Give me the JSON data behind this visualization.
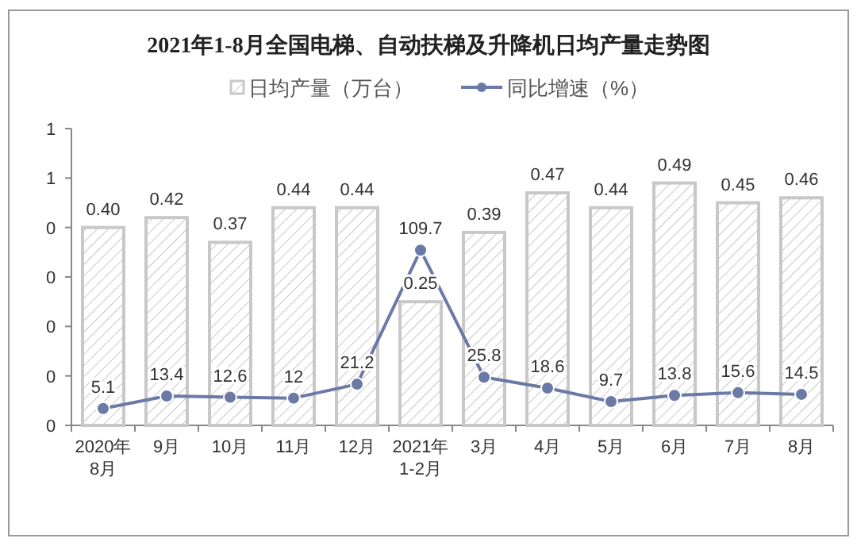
{
  "chart_data": {
    "type": "bar",
    "title": "2021年1-8月全国电梯、自动扶梯及升降机日均产量走势图",
    "categories": [
      "2020年\n8月",
      "9月",
      "10月",
      "11月",
      "12月",
      "2021年\n1-2月",
      "3月",
      "4月",
      "5月",
      "6月",
      "7月",
      "8月"
    ],
    "series": [
      {
        "name": "日均产量（万台）",
        "color": "#c8c8c8",
        "values": [
          0.4,
          0.42,
          0.37,
          0.44,
          0.44,
          0.25,
          0.39,
          0.47,
          0.44,
          0.49,
          0.45,
          0.46
        ],
        "value_labels": [
          "0.40",
          "0.42",
          "0.37",
          "0.44",
          "0.44",
          "0.25",
          "0.39",
          "0.47",
          "0.44",
          "0.49",
          "0.45",
          "0.46"
        ]
      },
      {
        "name": "同比增速（%）",
        "type": "line",
        "axis": "y2",
        "color": "#6b79a6",
        "marker": "circle",
        "values": [
          5.1,
          13.4,
          12.6,
          12,
          21.2,
          109.7,
          25.8,
          18.6,
          9.7,
          13.8,
          15.6,
          14.5
        ]
      }
    ],
    "ylim": [
      0,
      0.6
    ],
    "yticks": [
      {
        "value": 0,
        "label": "0"
      },
      {
        "value": 0.1,
        "label": "0"
      },
      {
        "value": 0.2,
        "label": "0"
      },
      {
        "value": 0.3,
        "label": "0"
      },
      {
        "value": 0.4,
        "label": "0"
      },
      {
        "value": 0.5,
        "label": "1"
      },
      {
        "value": 0.6,
        "label": "1"
      }
    ],
    "y2lim": [
      -6,
      190
    ],
    "data_labels": true,
    "legend": "top",
    "grid": false
  }
}
